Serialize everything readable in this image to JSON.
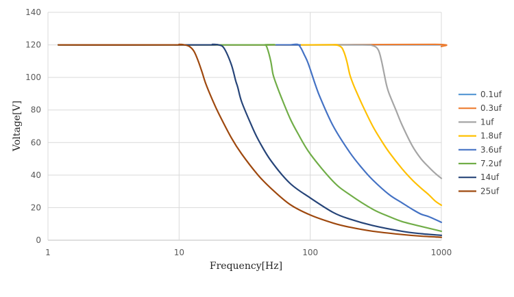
{
  "chart_data": {
    "type": "line",
    "title": "",
    "xlabel": "Frequency[Hz]",
    "ylabel": "Voltage[V]",
    "xscale": "log",
    "xlim": [
      1,
      1000
    ],
    "ylim": [
      0,
      140
    ],
    "x_ticks": [
      "1",
      "10",
      "100",
      "1000"
    ],
    "y_ticks": [
      "0",
      "20",
      "40",
      "60",
      "80",
      "100",
      "120",
      "140"
    ],
    "grid": true,
    "legend_position": "right",
    "series": [
      {
        "name": "0.1uf",
        "color": "#5B9BD5",
        "x": [
          1.2,
          10,
          100,
          1000
        ],
        "y": [
          120,
          120,
          120,
          120
        ]
      },
      {
        "name": "0.3uf",
        "color": "#ED7D31",
        "x": [
          1.2,
          10,
          100,
          900,
          1000
        ],
        "y": [
          120,
          120,
          120,
          120.3,
          119
        ]
      },
      {
        "name": "1uf",
        "color": "#A5A5A5",
        "x": [
          1.2,
          100,
          250,
          300,
          330,
          350,
          380,
          400,
          450,
          500,
          600,
          700,
          800,
          900,
          1000
        ],
        "y": [
          120,
          120,
          120,
          119.5,
          117,
          110,
          96,
          90,
          80,
          71,
          58,
          50,
          45,
          41,
          38
        ]
      },
      {
        "name": "1.8uf",
        "color": "#FFC000",
        "x": [
          1.2,
          100,
          150,
          170,
          180,
          190,
          200,
          210,
          220,
          250,
          300,
          350,
          400,
          500,
          600,
          700,
          800,
          900,
          1000
        ],
        "y": [
          120,
          120,
          120,
          119,
          116,
          110,
          102,
          97,
          93,
          83,
          70,
          61,
          54,
          44,
          37,
          32,
          28,
          24,
          21.5
        ]
      },
      {
        "name": "3.6uf",
        "color": "#4472C4",
        "x": [
          1.2,
          60,
          70,
          80,
          85,
          90,
          95,
          100,
          110,
          120,
          150,
          200,
          250,
          300,
          400,
          500,
          600,
          700,
          800,
          1000
        ],
        "y": [
          120,
          120,
          120,
          120.3,
          118,
          114,
          110,
          105,
          95,
          87,
          70,
          54,
          44,
          37,
          28,
          23,
          19,
          16,
          14.5,
          11
        ]
      },
      {
        "name": "7.2uf",
        "color": "#70AD47",
        "x": [
          1.2,
          40,
          45,
          47,
          50,
          52,
          55,
          60,
          70,
          80,
          100,
          150,
          200,
          300,
          400,
          500,
          700,
          1000
        ],
        "y": [
          120,
          120,
          120,
          118,
          110,
          102,
          96,
          88,
          75,
          66,
          53,
          36,
          28,
          19,
          14.5,
          11.5,
          8.5,
          5.5
        ]
      },
      {
        "name": "14uf",
        "color": "#264478",
        "x": [
          1.2,
          15,
          18,
          20,
          22,
          25,
          27,
          28,
          30,
          35,
          40,
          50,
          70,
          100,
          150,
          200,
          300,
          500,
          700,
          1000
        ],
        "y": [
          120,
          120,
          120.3,
          120,
          118,
          108,
          98,
          94,
          85,
          72,
          62,
          49,
          35,
          26,
          17,
          13,
          9,
          5.5,
          4,
          3
        ]
      },
      {
        "name": "25uf",
        "color": "#9E480E",
        "x": [
          1.2,
          9,
          10,
          11,
          12,
          13,
          14,
          15,
          16,
          18,
          20,
          25,
          30,
          40,
          50,
          70,
          100,
          150,
          200,
          300,
          500,
          700,
          1000
        ],
        "y": [
          120,
          120,
          120.3,
          120,
          119,
          116,
          110,
          103,
          96,
          86,
          78,
          63,
          53,
          40,
          32,
          22,
          15.5,
          10.5,
          8,
          5.5,
          3.5,
          2.5,
          1.8
        ]
      }
    ]
  }
}
